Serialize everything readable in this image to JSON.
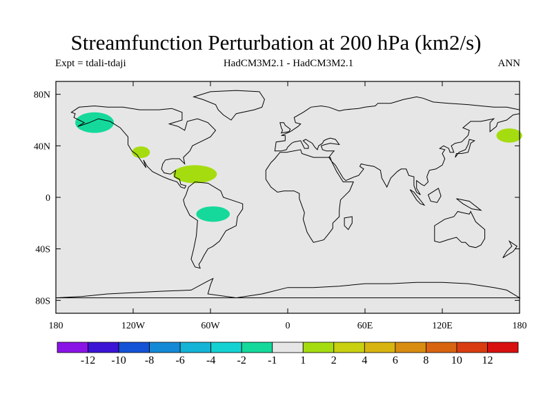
{
  "title": "Streamfunction Perturbation at 200 hPa (km2/s)",
  "subtitle_left": "Expt = tdali-tdaji",
  "subtitle_center": "HadCM3M2.1 - HadCM3M2.1",
  "subtitle_right": "ANN",
  "map": {
    "lon_range": [
      -180,
      180
    ],
    "lat_range": [
      -90,
      90
    ],
    "ocean_color": "#e6e6e6",
    "coast_color": "#000000",
    "y_ticks": [
      {
        "lat": 80,
        "label": "80N"
      },
      {
        "lat": 40,
        "label": "40N"
      },
      {
        "lat": 0,
        "label": "0"
      },
      {
        "lat": -40,
        "label": "40S"
      },
      {
        "lat": -80,
        "label": "80S"
      }
    ],
    "x_ticks": [
      {
        "lon": -180,
        "label": "180"
      },
      {
        "lon": -120,
        "label": "120W"
      },
      {
        "lon": -60,
        "label": "60W"
      },
      {
        "lon": 0,
        "label": "0"
      },
      {
        "lon": 60,
        "label": "60E"
      },
      {
        "lon": 120,
        "label": "120E"
      },
      {
        "lon": 180,
        "label": "180"
      }
    ],
    "anomalies": [
      {
        "name": "alaska-gulf-negative",
        "lon": -150,
        "lat": 58,
        "rlon": 15,
        "rlat": 8,
        "color": "#14d99a"
      },
      {
        "name": "baja-positive",
        "lon": -114,
        "lat": 35,
        "rlon": 7,
        "rlat": 4.5,
        "color": "#a5dc10"
      },
      {
        "name": "caribbean-positive",
        "lon": -72,
        "lat": 18,
        "rlon": 17,
        "rlat": 7,
        "color": "#a5dc10"
      },
      {
        "name": "amazon-negative",
        "lon": -58,
        "lat": -13,
        "rlon": 13,
        "rlat": 6,
        "color": "#14d99a"
      },
      {
        "name": "north-pacific-positive",
        "lon": 172,
        "lat": 48,
        "rlon": 10,
        "rlat": 5.5,
        "color": "#a5dc10"
      }
    ]
  },
  "colorbar": {
    "colors": [
      "#8a14e6",
      "#3c14d6",
      "#1452d6",
      "#148ad6",
      "#14b4d6",
      "#14d2d2",
      "#14d99a",
      "#e6e6e6",
      "#a5dc10",
      "#c8d010",
      "#d8b410",
      "#d88c10",
      "#d86410",
      "#d83c10",
      "#d81010"
    ],
    "labels": [
      "-12",
      "-10",
      "-8",
      "-6",
      "-4",
      "-2",
      "-1",
      "1",
      "2",
      "4",
      "6",
      "8",
      "10",
      "12"
    ]
  }
}
